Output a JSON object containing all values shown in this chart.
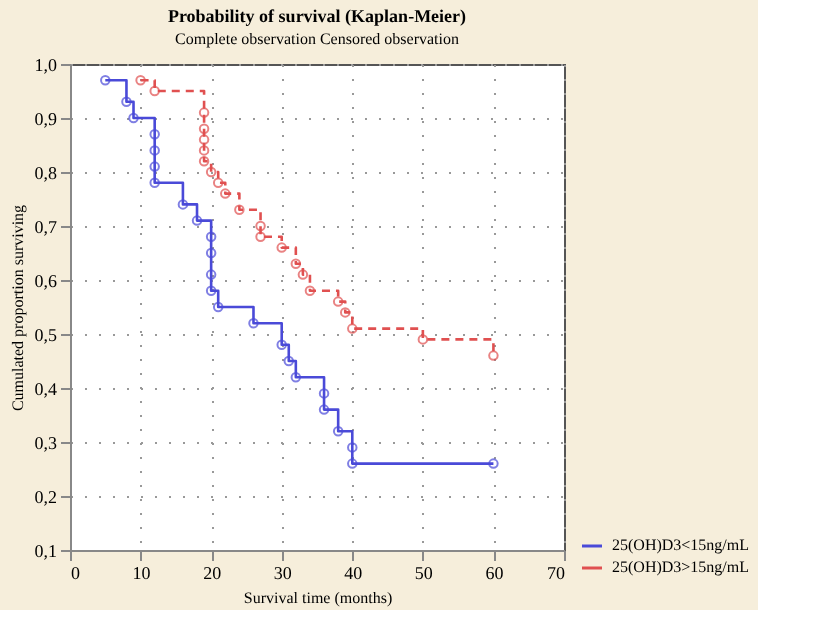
{
  "chart_data": {
    "type": "step",
    "title": "Probability of survival (Kaplan-Meier)",
    "subtitle": "Complete observation      Censored observation",
    "xlabel": "Survival time (months)",
    "ylabel": "Cumulated proportion surviving",
    "xlim": [
      0,
      70
    ],
    "xticks": [
      0,
      10,
      20,
      30,
      40,
      50,
      60,
      70
    ],
    "ylim": [
      0.1,
      1.0
    ],
    "yticks": [
      {
        "value": 0.1,
        "label": "0,1"
      },
      {
        "value": 0.2,
        "label": "0,2"
      },
      {
        "value": 0.3,
        "label": "0,3"
      },
      {
        "value": 0.4,
        "label": "0,4"
      },
      {
        "value": 0.5,
        "label": "0,5"
      },
      {
        "value": 0.6,
        "label": "0,6"
      },
      {
        "value": 0.7,
        "label": "0,7"
      },
      {
        "value": 0.8,
        "label": "0,8"
      },
      {
        "value": 0.9,
        "label": "0,9"
      },
      {
        "value": 1.0,
        "label": "1,0"
      }
    ],
    "grid": true,
    "legend": "bottom right",
    "marker": "circle",
    "series": [
      {
        "name": "25(OH)D3<15ng/mL",
        "color": "#4a4ad8",
        "line_style": "solid",
        "x": [
          5,
          8,
          9,
          12,
          12,
          12,
          12,
          16,
          18,
          20,
          20,
          20,
          20,
          21,
          26,
          30,
          31,
          32,
          36,
          36,
          38,
          40,
          40,
          60
        ],
        "values": [
          0.97,
          0.93,
          0.9,
          0.87,
          0.84,
          0.81,
          0.78,
          0.74,
          0.71,
          0.68,
          0.65,
          0.61,
          0.58,
          0.55,
          0.52,
          0.48,
          0.45,
          0.42,
          0.39,
          0.36,
          0.32,
          0.29,
          0.26,
          0.26
        ]
      },
      {
        "name": "25(OH)D3>15ng/mL",
        "color": "#e05050",
        "line_style": "dashed",
        "x": [
          10,
          12,
          19,
          19,
          19,
          19,
          19,
          20,
          21,
          22,
          24,
          27,
          27,
          30,
          32,
          33,
          34,
          38,
          39,
          40,
          50,
          60
        ],
        "values": [
          0.97,
          0.95,
          0.91,
          0.88,
          0.86,
          0.84,
          0.82,
          0.8,
          0.78,
          0.76,
          0.73,
          0.7,
          0.68,
          0.66,
          0.63,
          0.61,
          0.58,
          0.56,
          0.54,
          0.51,
          0.49,
          0.46
        ]
      }
    ]
  }
}
